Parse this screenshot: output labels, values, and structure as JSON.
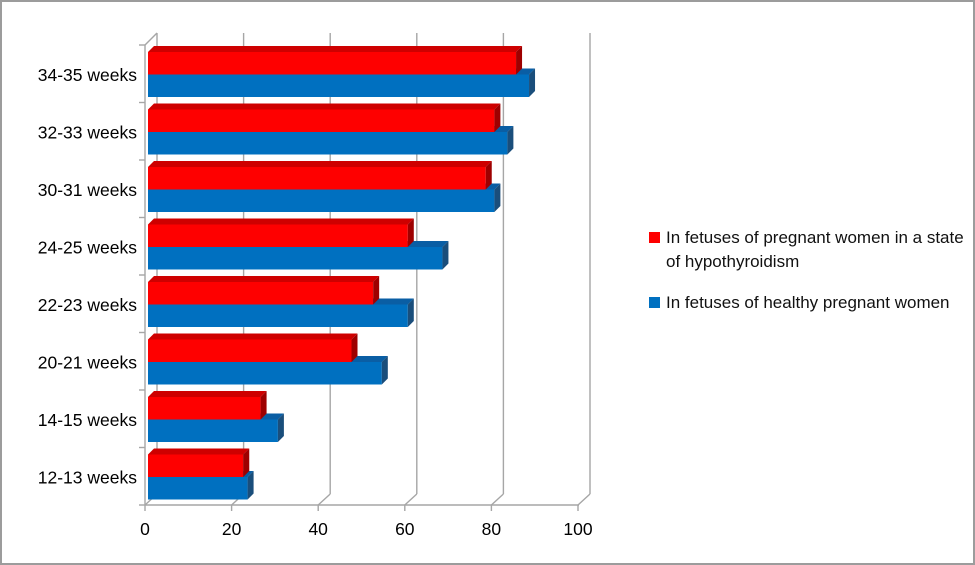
{
  "window": {
    "background_color": "#ffffff",
    "border_color": "#9c9c9c"
  },
  "chart_data": {
    "type": "bar",
    "style": "3d",
    "orientation": "horizontal",
    "title": "",
    "xlabel": "",
    "ylabel": "",
    "xlim": [
      0,
      100
    ],
    "x_ticks": [
      0,
      20,
      40,
      60,
      80,
      100
    ],
    "grid": true,
    "legend_position": "right",
    "categories": [
      "34-35 weeks",
      "32-33 weeks",
      "30-31 weeks",
      "24-25 weeks",
      "22-23 weeks",
      "20-21 weeks",
      "14-15 weeks",
      "12-13 weeks"
    ],
    "series": [
      {
        "name": "In fetuses of pregnant women in a state of hypothyroidism",
        "color": "#fe0000",
        "color_top": "#ce0000",
        "color_side": "#9e0000",
        "values": [
          85,
          80,
          78,
          60,
          52,
          47,
          26,
          22
        ]
      },
      {
        "name": "In fetuses of healthy pregnant women",
        "color": "#0070c0",
        "color_top": "#0a5ea4",
        "color_side": "#1a4e7b",
        "values": [
          88,
          83,
          80,
          68,
          60,
          54,
          30,
          23
        ]
      }
    ],
    "axis_color": "#a6a6a6",
    "tick_label_color": "#000000"
  },
  "legend": {
    "items": [
      {
        "label": "In fetuses of pregnant women in a state of hypothyroidism",
        "color": "#fe0000"
      },
      {
        "label": "In fetuses of healthy pregnant women",
        "color": "#0070c0"
      }
    ]
  }
}
